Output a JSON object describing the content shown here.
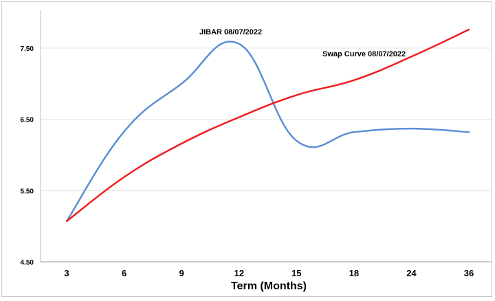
{
  "chart_data": {
    "type": "line",
    "title": "",
    "xlabel": "Term (Months)",
    "ylabel": "",
    "categories": [
      "3",
      "6",
      "9",
      "12",
      "15",
      "18",
      "24",
      "36"
    ],
    "y_ticks": [
      "4.50",
      "5.50",
      "6.50",
      "7.50"
    ],
    "ylim": [
      4.5,
      7.75
    ],
    "grid": "horizontal",
    "series": [
      {
        "name": "JIBAR  08/07/2022",
        "color": "#5b8fd4",
        "values": [
          5.07,
          6.33,
          7.0,
          7.56,
          6.2,
          6.32,
          6.37,
          6.32
        ]
      },
      {
        "name": "Swap Curve  08/07/2022",
        "color": "#f01e1e",
        "values": [
          5.07,
          5.69,
          6.16,
          6.53,
          6.84,
          7.05,
          7.38,
          7.76
        ]
      }
    ]
  }
}
